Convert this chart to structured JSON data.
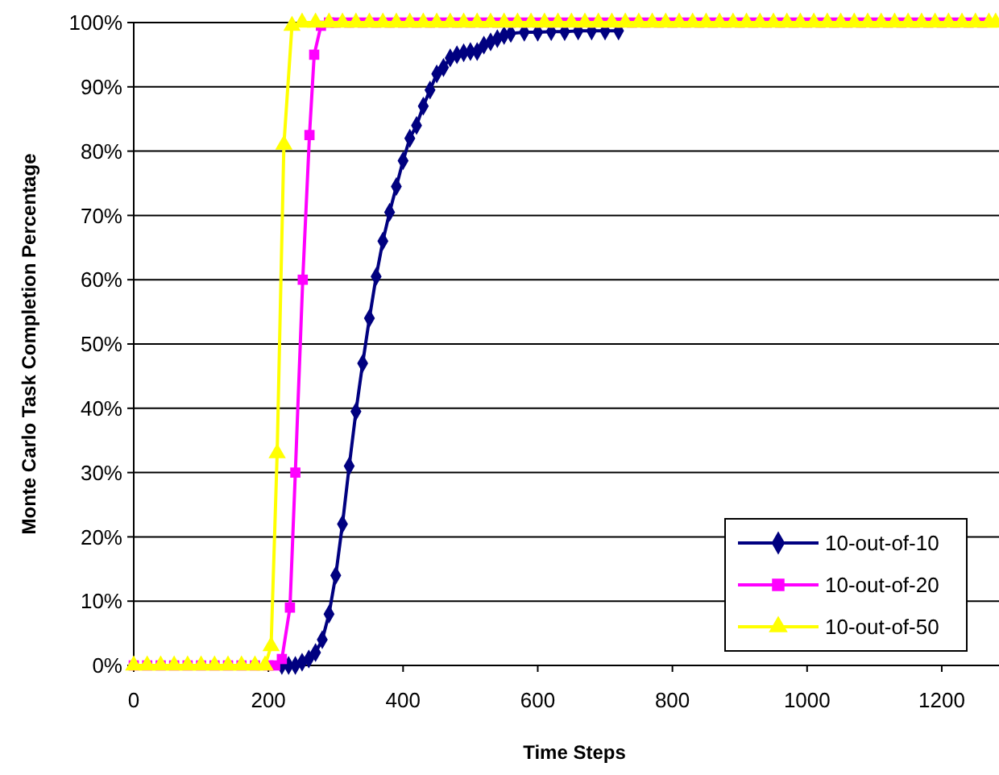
{
  "chart_data": {
    "type": "line",
    "xlabel": "Time Steps",
    "ylabel": "Monte Carlo Task Completion Percentage",
    "xlim": [
      0,
      1285
    ],
    "ylim": [
      0,
      100
    ],
    "xticks": [
      0,
      200,
      400,
      600,
      800,
      1000,
      1200
    ],
    "yticks": [
      {
        "value": 0,
        "label": "0%"
      },
      {
        "value": 10,
        "label": "10%"
      },
      {
        "value": 20,
        "label": "20%"
      },
      {
        "value": 30,
        "label": "30%"
      },
      {
        "value": 40,
        "label": "40%"
      },
      {
        "value": 50,
        "label": "50%"
      },
      {
        "value": 60,
        "label": "60%"
      },
      {
        "value": 70,
        "label": "70%"
      },
      {
        "value": 80,
        "label": "80%"
      },
      {
        "value": 90,
        "label": "90%"
      },
      {
        "value": 100,
        "label": "100%"
      }
    ],
    "grid": "y",
    "legend": "bottom right",
    "line_style": "solid",
    "series": [
      {
        "name": "10-out-of-10",
        "color": "#000080",
        "marker": "diamond",
        "x": [
          220,
          230,
          240,
          250,
          260,
          270,
          280,
          290,
          300,
          310,
          320,
          330,
          340,
          350,
          360,
          370,
          380,
          390,
          400,
          410,
          420,
          430,
          440,
          450,
          460,
          470,
          480,
          490,
          500,
          510,
          520,
          530,
          540,
          550,
          560,
          580,
          600,
          620,
          640,
          660,
          680,
          700,
          720
        ],
        "values": [
          0,
          0,
          0,
          0.5,
          1,
          2,
          4,
          8,
          14,
          22,
          31,
          39.5,
          47,
          54,
          60.5,
          66,
          70.5,
          74.5,
          78.5,
          82,
          84,
          87,
          89.5,
          92,
          93,
          94.5,
          95,
          95.3,
          95.5,
          95.5,
          96.5,
          97,
          97.5,
          98,
          98.3,
          98.5,
          98.5,
          98.6,
          98.6,
          98.7,
          98.7,
          98.7,
          98.7
        ]
      },
      {
        "name": "10-out-of-20",
        "color": "#ff00ff",
        "marker": "square",
        "x": [
          0,
          20,
          40,
          60,
          80,
          100,
          120,
          140,
          160,
          180,
          200,
          210,
          220,
          232,
          240,
          251,
          261,
          268,
          278,
          290,
          300,
          320,
          340,
          360,
          380,
          400,
          420,
          440,
          460,
          480,
          500,
          520,
          540,
          560,
          580,
          600,
          620,
          640,
          660,
          680,
          700,
          720,
          740,
          760,
          780,
          800,
          820,
          840,
          860,
          880,
          900,
          920,
          940,
          960,
          980,
          1000,
          1020,
          1040,
          1060,
          1080,
          1100,
          1120,
          1140,
          1160,
          1180,
          1200,
          1220,
          1240,
          1260
        ],
        "values": [
          0,
          0,
          0,
          0,
          0,
          0,
          0,
          0,
          0,
          0,
          0,
          0,
          1,
          9,
          30,
          60,
          82.5,
          95,
          99.5,
          100,
          100,
          100,
          100,
          100,
          100,
          100,
          100,
          100,
          100,
          100,
          100,
          100,
          100,
          100,
          100,
          100,
          100,
          100,
          100,
          100,
          100,
          100,
          100,
          100,
          100,
          100,
          100,
          100,
          100,
          100,
          100,
          100,
          100,
          100,
          100,
          100,
          100,
          100,
          100,
          100,
          100,
          100,
          100,
          100,
          100,
          100,
          100,
          100,
          100
        ]
      },
      {
        "name": "10-out-of-50",
        "color": "#ffff00",
        "marker": "triangle",
        "x": [
          0,
          20,
          40,
          60,
          80,
          100,
          120,
          140,
          160,
          180,
          195,
          204,
          213,
          223,
          235,
          250,
          270,
          290,
          310,
          330,
          350,
          370,
          390,
          410,
          430,
          450,
          470,
          490,
          510,
          530,
          550,
          570,
          590,
          610,
          630,
          650,
          670,
          690,
          710,
          730,
          750,
          770,
          790,
          810,
          830,
          850,
          870,
          890,
          910,
          930,
          950,
          970,
          990,
          1010,
          1030,
          1050,
          1070,
          1090,
          1110,
          1130,
          1150,
          1170,
          1190,
          1210,
          1230,
          1250,
          1270,
          1280
        ],
        "values": [
          0,
          0,
          0,
          0,
          0,
          0,
          0,
          0,
          0,
          0,
          0,
          3,
          33,
          81,
          99.5,
          100,
          100,
          100,
          100,
          100,
          100,
          100,
          100,
          100,
          100,
          100,
          100,
          100,
          100,
          100,
          100,
          100,
          100,
          100,
          100,
          100,
          100,
          100,
          100,
          100,
          100,
          100,
          100,
          100,
          100,
          100,
          100,
          100,
          100,
          100,
          100,
          100,
          100,
          100,
          100,
          100,
          100,
          100,
          100,
          100,
          100,
          100,
          100,
          100,
          100,
          100,
          100,
          100
        ]
      }
    ]
  }
}
